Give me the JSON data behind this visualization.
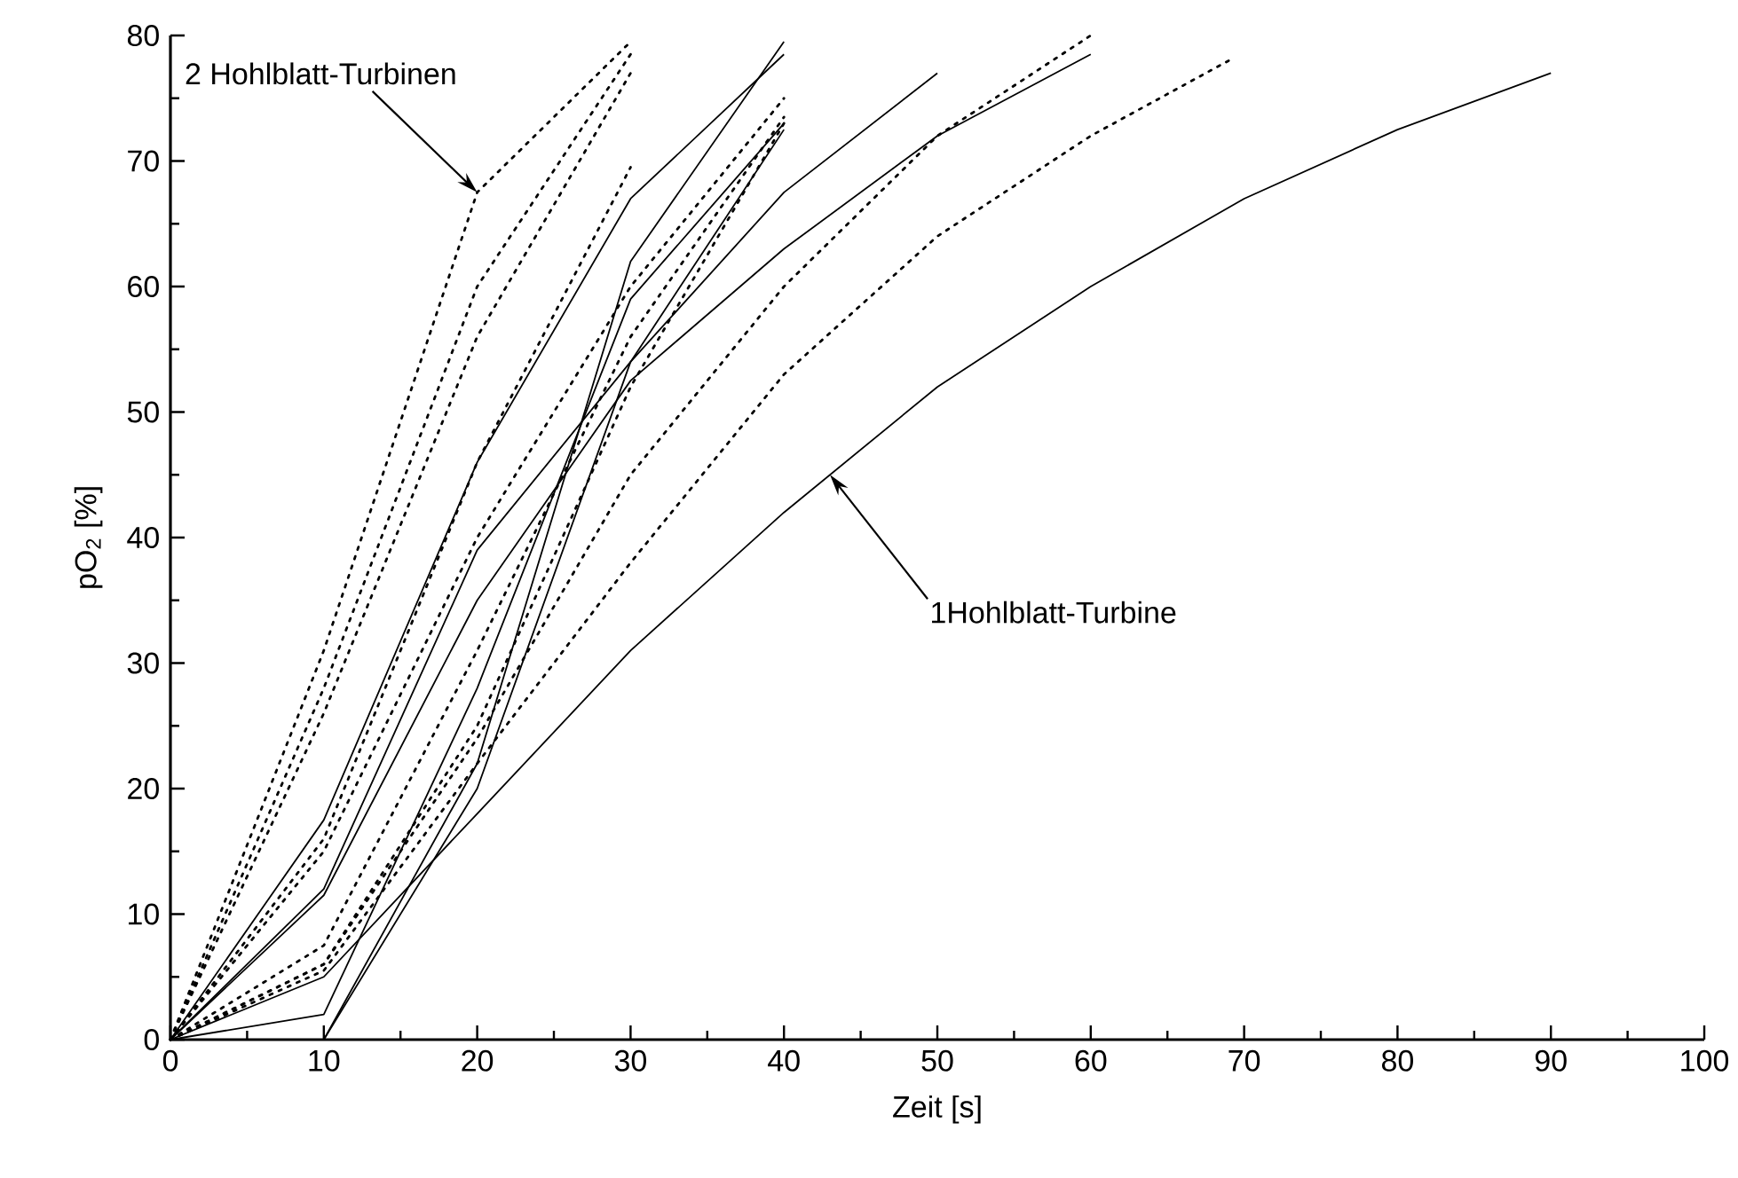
{
  "chart_data": {
    "type": "line",
    "xlabel": "Zeit [s]",
    "ylabel": "pO$_{2}$ [%]",
    "xlim": [
      0,
      100
    ],
    "ylim": [
      0,
      80
    ],
    "xticks": [
      0,
      10,
      20,
      30,
      40,
      50,
      60,
      70,
      80,
      90,
      100
    ],
    "yticks": [
      0,
      10,
      20,
      30,
      40,
      50,
      60,
      70,
      80
    ],
    "marker": "none",
    "annotations": [
      {
        "text": "2 Hohlblatt-Turbinen",
        "x": 20,
        "y": 67.5
      },
      {
        "text": "1Hohlblatt-Turbine",
        "x": 43,
        "y": 45
      }
    ],
    "series": [
      {
        "color": "#000000",
        "line_style": "solid",
        "x": [
          0,
          10,
          20,
          30,
          40
        ],
        "values": [
          0,
          17.5,
          46,
          67,
          78.5
        ]
      },
      {
        "color": "#000000",
        "line_style": "solid",
        "x": [
          0,
          10,
          20,
          30,
          40
        ],
        "values": [
          0,
          0,
          22,
          62,
          79.5
        ]
      },
      {
        "color": "#000000",
        "line_style": "solid",
        "x": [
          0,
          10,
          20,
          30,
          40,
          50
        ],
        "values": [
          0,
          12,
          39,
          54,
          67.5,
          77
        ]
      },
      {
        "color": "#000000",
        "line_style": "solid",
        "x": [
          0,
          10,
          20,
          30,
          40,
          50,
          60
        ],
        "values": [
          0,
          11.5,
          35,
          52.5,
          63,
          72,
          78.5
        ]
      },
      {
        "color": "#000000",
        "line_style": "solid",
        "x": [
          0,
          10,
          20,
          30,
          40
        ],
        "values": [
          0,
          2,
          28,
          59,
          73
        ]
      },
      {
        "color": "#000000",
        "line_style": "solid",
        "x": [
          0,
          10,
          20,
          30,
          40
        ],
        "values": [
          0,
          0,
          20,
          54,
          72.5
        ]
      },
      {
        "color": "#000000",
        "line_style": "solid",
        "x": [
          0,
          10,
          20,
          30,
          40,
          50,
          60,
          70,
          80,
          90
        ],
        "values": [
          0,
          5,
          18,
          31,
          42,
          52,
          60,
          67,
          72.5,
          77
        ]
      },
      {
        "color": "#000000",
        "line_style": "dotted",
        "x": [
          0,
          10,
          20,
          30
        ],
        "values": [
          0,
          31,
          67.5,
          79.5
        ]
      },
      {
        "color": "#000000",
        "line_style": "dotted",
        "x": [
          0,
          10,
          20,
          30
        ],
        "values": [
          0,
          28,
          60,
          78.5
        ]
      },
      {
        "color": "#000000",
        "line_style": "dotted",
        "x": [
          0,
          10,
          20,
          30
        ],
        "values": [
          0,
          26,
          56,
          77
        ]
      },
      {
        "color": "#000000",
        "line_style": "dotted",
        "x": [
          0,
          10,
          20,
          30
        ],
        "values": [
          0,
          16,
          46,
          69.5
        ]
      },
      {
        "color": "#000000",
        "line_style": "dotted",
        "x": [
          0,
          10,
          20,
          30,
          40
        ],
        "values": [
          0,
          15,
          40,
          60,
          75
        ]
      },
      {
        "color": "#000000",
        "line_style": "dotted",
        "x": [
          0,
          10,
          20,
          30,
          40
        ],
        "values": [
          0,
          7.5,
          31,
          56,
          73.5
        ]
      },
      {
        "color": "#000000",
        "line_style": "dotted",
        "x": [
          0,
          10,
          20,
          30,
          40
        ],
        "values": [
          0,
          6,
          25,
          52,
          73
        ]
      },
      {
        "color": "#000000",
        "line_style": "dotted",
        "x": [
          0,
          10,
          20,
          30,
          40,
          50,
          60
        ],
        "values": [
          0,
          6,
          24,
          45,
          60,
          72,
          80
        ]
      },
      {
        "color": "#000000",
        "line_style": "dotted",
        "x": [
          0,
          10,
          20,
          30,
          40,
          50,
          60,
          69
        ],
        "values": [
          0,
          5.5,
          22,
          38,
          53,
          64,
          72,
          78
        ]
      }
    ]
  }
}
